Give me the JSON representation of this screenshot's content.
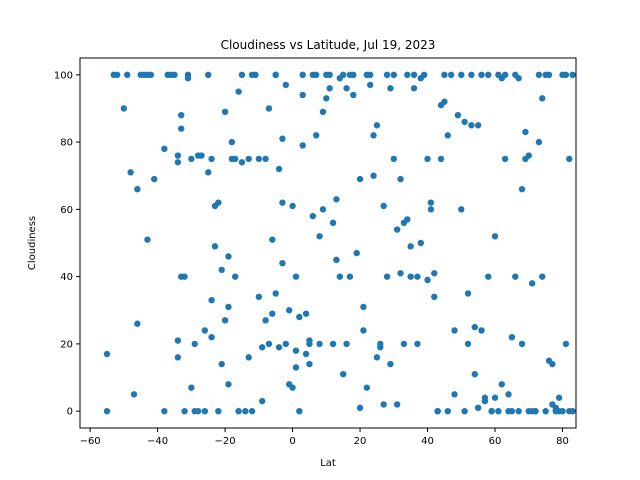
{
  "chart_data": {
    "type": "scatter",
    "title": "Cloudiness vs Latitude, Jul 19, 2023",
    "xlabel": "Lat",
    "ylabel": "Cloudiness",
    "xlim": [
      -63,
      84
    ],
    "ylim": [
      -5,
      105
    ],
    "xticks": [
      -60,
      -40,
      -20,
      0,
      20,
      40,
      60,
      80
    ],
    "yticks": [
      0,
      20,
      40,
      60,
      80,
      100
    ],
    "marker_color": "#1f77b4",
    "grid": false,
    "points": [
      [
        -55,
        0
      ],
      [
        -55,
        17
      ],
      [
        -53,
        100
      ],
      [
        -52,
        100
      ],
      [
        -50,
        90
      ],
      [
        -49,
        100
      ],
      [
        -48,
        71
      ],
      [
        -47,
        5
      ],
      [
        -46,
        26
      ],
      [
        -46,
        66
      ],
      [
        -45,
        100
      ],
      [
        -44,
        100
      ],
      [
        -43,
        100
      ],
      [
        -43,
        51
      ],
      [
        -42,
        100
      ],
      [
        -41,
        69
      ],
      [
        -38,
        0
      ],
      [
        -38,
        78
      ],
      [
        -37,
        100
      ],
      [
        -36,
        100
      ],
      [
        -35,
        100
      ],
      [
        -34,
        16
      ],
      [
        -34,
        21
      ],
      [
        -34,
        74
      ],
      [
        -34,
        76
      ],
      [
        -33,
        88
      ],
      [
        -33,
        84
      ],
      [
        -33,
        40
      ],
      [
        -32,
        40
      ],
      [
        -32,
        0
      ],
      [
        -31,
        99
      ],
      [
        -31,
        100
      ],
      [
        -30,
        75
      ],
      [
        -30,
        7
      ],
      [
        -29,
        0
      ],
      [
        -29,
        20
      ],
      [
        -28,
        76
      ],
      [
        -28,
        0
      ],
      [
        -27,
        76
      ],
      [
        -26,
        24
      ],
      [
        -26,
        0
      ],
      [
        -25,
        71
      ],
      [
        -25,
        100
      ],
      [
        -24,
        75
      ],
      [
        -24,
        22
      ],
      [
        -24,
        33
      ],
      [
        -23,
        61
      ],
      [
        -23,
        49
      ],
      [
        -22,
        62
      ],
      [
        -22,
        0
      ],
      [
        -21,
        42
      ],
      [
        -21,
        14
      ],
      [
        -20,
        27
      ],
      [
        -20,
        89
      ],
      [
        -19,
        31
      ],
      [
        -19,
        8
      ],
      [
        -19,
        46
      ],
      [
        -18,
        80
      ],
      [
        -18,
        75
      ],
      [
        -17,
        75
      ],
      [
        -17,
        40
      ],
      [
        -16,
        0
      ],
      [
        -16,
        95
      ],
      [
        -15,
        100
      ],
      [
        -15,
        74
      ],
      [
        -14,
        0
      ],
      [
        -13,
        75
      ],
      [
        -13,
        16
      ],
      [
        -12,
        0
      ],
      [
        -12,
        100
      ],
      [
        -11,
        100
      ],
      [
        -10,
        34
      ],
      [
        -10,
        75
      ],
      [
        -9,
        3
      ],
      [
        -9,
        19
      ],
      [
        -8,
        27
      ],
      [
        -8,
        75
      ],
      [
        -7,
        20
      ],
      [
        -7,
        90
      ],
      [
        -6,
        51
      ],
      [
        -6,
        29
      ],
      [
        -5,
        100
      ],
      [
        -5,
        100
      ],
      [
        -5,
        35
      ],
      [
        -4,
        72
      ],
      [
        -4,
        19
      ],
      [
        -3,
        62
      ],
      [
        -3,
        44
      ],
      [
        -3,
        81
      ],
      [
        -2,
        97
      ],
      [
        -2,
        20
      ],
      [
        -1,
        8
      ],
      [
        -1,
        30
      ],
      [
        0,
        7
      ],
      [
        0,
        61
      ],
      [
        1,
        40
      ],
      [
        1,
        18
      ],
      [
        1,
        13
      ],
      [
        2,
        28
      ],
      [
        2,
        0
      ],
      [
        3,
        100
      ],
      [
        3,
        94
      ],
      [
        3,
        79
      ],
      [
        4,
        17
      ],
      [
        4,
        29
      ],
      [
        5,
        20
      ],
      [
        5,
        14
      ],
      [
        5,
        21
      ],
      [
        6,
        100
      ],
      [
        6,
        58
      ],
      [
        7,
        82
      ],
      [
        7,
        100
      ],
      [
        8,
        20
      ],
      [
        8,
        52
      ],
      [
        9,
        89
      ],
      [
        9,
        60
      ],
      [
        10,
        100
      ],
      [
        10,
        93
      ],
      [
        11,
        96
      ],
      [
        11,
        100
      ],
      [
        12,
        20
      ],
      [
        12,
        56
      ],
      [
        13,
        45
      ],
      [
        13,
        63
      ],
      [
        14,
        40
      ],
      [
        14,
        99
      ],
      [
        15,
        11
      ],
      [
        15,
        100
      ],
      [
        16,
        96
      ],
      [
        16,
        20
      ],
      [
        17,
        40
      ],
      [
        17,
        100
      ],
      [
        18,
        94
      ],
      [
        18,
        100
      ],
      [
        19,
        47
      ],
      [
        20,
        69
      ],
      [
        20,
        1
      ],
      [
        21,
        24
      ],
      [
        21,
        31
      ],
      [
        22,
        7
      ],
      [
        22,
        100
      ],
      [
        23,
        97
      ],
      [
        23,
        100
      ],
      [
        24,
        82
      ],
      [
        24,
        70
      ],
      [
        25,
        85
      ],
      [
        25,
        16
      ],
      [
        26,
        19
      ],
      [
        26,
        20
      ],
      [
        27,
        61
      ],
      [
        27,
        2
      ],
      [
        28,
        40
      ],
      [
        28,
        100
      ],
      [
        29,
        96
      ],
      [
        29,
        14
      ],
      [
        30,
        100
      ],
      [
        30,
        75
      ],
      [
        31,
        54
      ],
      [
        31,
        2
      ],
      [
        32,
        41
      ],
      [
        32,
        69
      ],
      [
        33,
        20
      ],
      [
        33,
        56
      ],
      [
        34,
        57
      ],
      [
        34,
        100
      ],
      [
        35,
        49
      ],
      [
        35,
        40
      ],
      [
        36,
        100
      ],
      [
        36,
        96
      ],
      [
        37,
        20
      ],
      [
        37,
        40
      ],
      [
        38,
        50
      ],
      [
        38,
        99
      ],
      [
        39,
        100
      ],
      [
        40,
        39
      ],
      [
        40,
        75
      ],
      [
        41,
        62
      ],
      [
        41,
        60
      ],
      [
        42,
        34
      ],
      [
        42,
        41
      ],
      [
        43,
        0
      ],
      [
        43,
        0
      ],
      [
        44,
        75
      ],
      [
        44,
        91
      ],
      [
        45,
        100
      ],
      [
        45,
        92
      ],
      [
        46,
        82
      ],
      [
        46,
        0
      ],
      [
        47,
        100
      ],
      [
        48,
        5
      ],
      [
        48,
        24
      ],
      [
        49,
        88
      ],
      [
        50,
        60
      ],
      [
        50,
        100
      ],
      [
        51,
        0
      ],
      [
        51,
        86
      ],
      [
        52,
        20
      ],
      [
        52,
        35
      ],
      [
        53,
        100
      ],
      [
        53,
        85
      ],
      [
        54,
        25
      ],
      [
        54,
        11
      ],
      [
        55,
        1
      ],
      [
        55,
        85
      ],
      [
        56,
        24
      ],
      [
        56,
        100
      ],
      [
        57,
        4
      ],
      [
        57,
        3
      ],
      [
        58,
        40
      ],
      [
        58,
        100
      ],
      [
        59,
        0
      ],
      [
        59,
        0
      ],
      [
        60,
        52
      ],
      [
        60,
        4
      ],
      [
        61,
        100
      ],
      [
        61,
        0
      ],
      [
        62,
        8
      ],
      [
        62,
        99
      ],
      [
        63,
        75
      ],
      [
        63,
        100
      ],
      [
        64,
        5
      ],
      [
        64,
        0
      ],
      [
        65,
        0
      ],
      [
        65,
        22
      ],
      [
        66,
        40
      ],
      [
        66,
        100
      ],
      [
        67,
        0
      ],
      [
        67,
        99
      ],
      [
        68,
        20
      ],
      [
        68,
        66
      ],
      [
        69,
        75
      ],
      [
        69,
        83
      ],
      [
        70,
        0
      ],
      [
        70,
        76
      ],
      [
        71,
        0
      ],
      [
        71,
        38
      ],
      [
        72,
        0
      ],
      [
        72,
        0
      ],
      [
        73,
        80
      ],
      [
        73,
        100
      ],
      [
        74,
        93
      ],
      [
        74,
        40
      ],
      [
        75,
        0
      ],
      [
        75,
        100
      ],
      [
        76,
        100
      ],
      [
        76,
        15
      ],
      [
        77,
        14
      ],
      [
        77,
        2
      ],
      [
        78,
        0
      ],
      [
        78,
        1
      ],
      [
        79,
        0
      ],
      [
        79,
        4
      ],
      [
        80,
        100
      ],
      [
        80,
        0
      ],
      [
        81,
        20
      ],
      [
        81,
        100
      ],
      [
        82,
        75
      ],
      [
        82,
        0
      ],
      [
        83,
        0
      ],
      [
        83,
        100
      ]
    ]
  }
}
